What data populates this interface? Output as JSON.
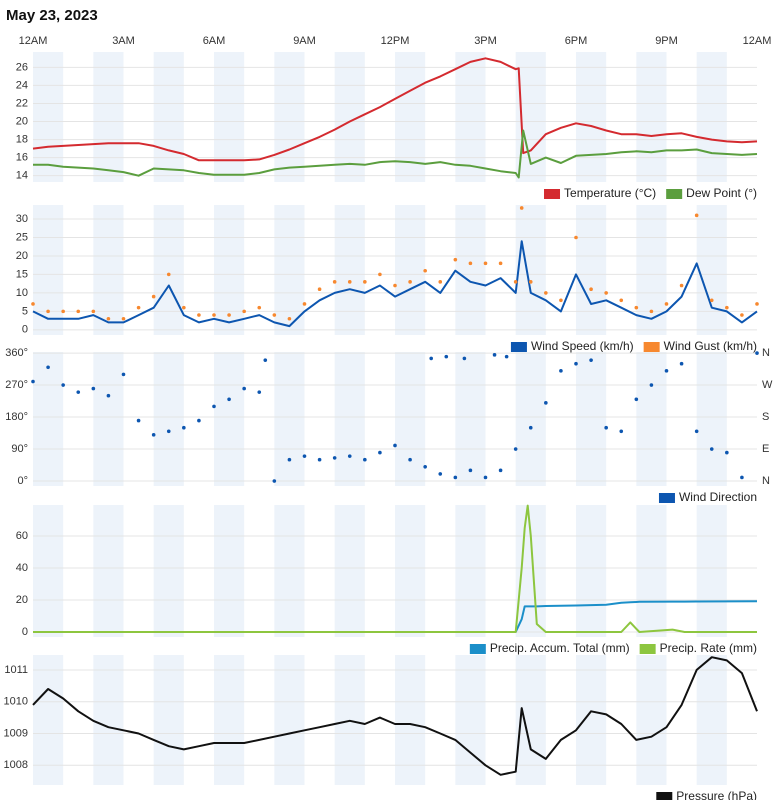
{
  "title": "May 23, 2023",
  "chart_data": [
    {
      "type": "line",
      "xlim": [
        0,
        24
      ],
      "xticks": [
        {
          "value": 0,
          "label": "12AM"
        },
        {
          "value": 3,
          "label": "3AM"
        },
        {
          "value": 6,
          "label": "6AM"
        },
        {
          "value": 9,
          "label": "9AM"
        },
        {
          "value": 12,
          "label": "12PM"
        },
        {
          "value": 15,
          "label": "3PM"
        },
        {
          "value": 18,
          "label": "6PM"
        },
        {
          "value": 21,
          "label": "9PM"
        },
        {
          "value": 24,
          "label": "12AM"
        }
      ],
      "ylim": [
        13.3,
        27.7
      ],
      "yticks": [
        14,
        16,
        18,
        20,
        22,
        24,
        26
      ],
      "grid": true,
      "x": [
        0,
        0.5,
        1,
        1.5,
        2,
        2.5,
        3,
        3.5,
        4,
        4.5,
        5,
        5.5,
        6,
        6.5,
        7,
        7.5,
        8,
        8.5,
        9,
        9.5,
        10,
        10.5,
        11,
        11.5,
        12,
        12.5,
        13,
        13.5,
        14,
        14.5,
        15,
        15.5,
        16,
        16.1,
        16.25,
        16.5,
        17,
        17.5,
        18,
        18.5,
        19,
        19.5,
        20,
        20.5,
        21,
        21.5,
        22,
        22.5,
        23,
        23.5,
        24
      ],
      "series": [
        {
          "name": "Temperature (°C)",
          "color": "#d42a2f",
          "type": "line",
          "values": [
            17.0,
            17.2,
            17.3,
            17.4,
            17.5,
            17.6,
            17.6,
            17.6,
            17.3,
            16.8,
            16.4,
            15.7,
            15.7,
            15.7,
            15.7,
            15.8,
            16.3,
            16.9,
            17.6,
            18.3,
            19.1,
            20.0,
            20.8,
            21.6,
            22.5,
            23.4,
            24.3,
            25.0,
            25.8,
            26.6,
            27.0,
            26.6,
            25.8,
            25.9,
            16.5,
            16.8,
            18.6,
            19.3,
            19.8,
            19.5,
            19.0,
            18.6,
            18.6,
            18.4,
            18.6,
            18.7,
            18.3,
            18.0,
            17.8,
            17.7,
            17.8
          ]
        },
        {
          "name": "Dew Point (°)",
          "color": "#5b9e3e",
          "type": "line",
          "values": [
            15.2,
            15.2,
            15.0,
            14.9,
            14.8,
            14.6,
            14.4,
            14.0,
            14.8,
            14.7,
            14.6,
            14.3,
            14.1,
            14.1,
            14.1,
            14.3,
            14.7,
            14.9,
            15.0,
            15.1,
            15.2,
            15.3,
            15.2,
            15.5,
            15.6,
            15.5,
            15.3,
            15.5,
            15.2,
            15.1,
            14.8,
            14.5,
            14.3,
            13.8,
            19.0,
            15.3,
            16.0,
            15.4,
            16.2,
            16.3,
            16.4,
            16.6,
            16.7,
            16.6,
            16.8,
            16.8,
            16.9,
            16.5,
            16.4,
            16.3,
            16.4
          ]
        }
      ]
    },
    {
      "type": "line",
      "xlim": [
        0,
        24
      ],
      "ylim": [
        -1.4,
        33.8
      ],
      "yticks": [
        0,
        5,
        10,
        15,
        20,
        25,
        30
      ],
      "grid": true,
      "x": [
        0,
        0.5,
        1,
        1.5,
        2,
        2.5,
        3,
        3.5,
        4,
        4.5,
        5,
        5.5,
        6,
        6.5,
        7,
        7.5,
        8,
        8.5,
        9,
        9.5,
        10,
        10.5,
        11,
        11.5,
        12,
        12.5,
        13,
        13.5,
        14,
        14.5,
        15,
        15.5,
        16,
        16.2,
        16.5,
        17,
        17.5,
        18,
        18.5,
        19,
        19.5,
        20,
        20.5,
        21,
        21.5,
        22,
        22.5,
        23,
        23.5,
        24
      ],
      "series": [
        {
          "name": "Wind Speed (km/h)",
          "color": "#0d56b0",
          "type": "line",
          "values": [
            5,
            3,
            3,
            3,
            4,
            2,
            2,
            4,
            6,
            12,
            4,
            2,
            3,
            2,
            3,
            4,
            2,
            1,
            5,
            8,
            10,
            11,
            10,
            12,
            9,
            11,
            13,
            10,
            16,
            13,
            12,
            14,
            10,
            24,
            10,
            8,
            5,
            15,
            7,
            8,
            6,
            4,
            3,
            5,
            9,
            18,
            6,
            5,
            2,
            5
          ]
        },
        {
          "name": "Wind Gust (km/h)",
          "color": "#f7882f",
          "type": "scatter",
          "values": [
            7,
            5,
            5,
            5,
            5,
            3,
            3,
            6,
            9,
            15,
            6,
            4,
            4,
            4,
            5,
            6,
            4,
            3,
            7,
            11,
            13,
            13,
            13,
            15,
            12,
            13,
            16,
            13,
            19,
            18,
            18,
            18,
            13,
            33,
            13,
            10,
            8,
            25,
            11,
            10,
            8,
            6,
            5,
            7,
            12,
            31,
            8,
            6,
            4,
            7
          ]
        }
      ]
    },
    {
      "type": "scatter",
      "xlim": [
        0,
        24
      ],
      "ylim": [
        -14,
        363
      ],
      "yticks": [
        {
          "value": 0,
          "label": "0°"
        },
        {
          "value": 90,
          "label": "90°"
        },
        {
          "value": 180,
          "label": "180°"
        },
        {
          "value": 270,
          "label": "270°"
        },
        {
          "value": 360,
          "label": "360°"
        }
      ],
      "y2lim": [
        -14,
        363
      ],
      "y2ticks": [
        {
          "value": 0,
          "label": "N"
        },
        {
          "value": 90,
          "label": "E"
        },
        {
          "value": 180,
          "label": "S"
        },
        {
          "value": 270,
          "label": "W"
        },
        {
          "value": 360,
          "label": "N"
        }
      ],
      "grid": true,
      "x": [
        0,
        0.5,
        1,
        1.5,
        2,
        2.5,
        3,
        3.5,
        4,
        4.5,
        5,
        5.5,
        6,
        6.5,
        7,
        7.5,
        7.7,
        8,
        8.5,
        9,
        9.5,
        10,
        10.5,
        11,
        11.5,
        12,
        12.5,
        13,
        13.2,
        13.5,
        13.7,
        14,
        14.3,
        14.5,
        15,
        15.3,
        15.5,
        15.7,
        16,
        16.5,
        17,
        17.5,
        18,
        18.5,
        19,
        19.5,
        20,
        20.5,
        21,
        21.5,
        22,
        22.5,
        23,
        23.5,
        24
      ],
      "series": [
        {
          "name": "Wind Direction",
          "color": "#0d56b0",
          "type": "scatter",
          "values": [
            280,
            320,
            270,
            250,
            260,
            240,
            300,
            170,
            130,
            140,
            150,
            170,
            210,
            230,
            260,
            250,
            340,
            0,
            60,
            70,
            60,
            65,
            70,
            60,
            80,
            100,
            60,
            40,
            345,
            20,
            350,
            10,
            345,
            30,
            10,
            355,
            30,
            350,
            90,
            150,
            220,
            310,
            330,
            340,
            150,
            140,
            230,
            270,
            310,
            330,
            140,
            90,
            80,
            10,
            360
          ]
        }
      ]
    },
    {
      "type": "line",
      "xlim": [
        0,
        24
      ],
      "ylim": [
        -3.1,
        79.4
      ],
      "yticks": [
        0,
        20,
        40,
        60
      ],
      "grid": true,
      "x": [
        0,
        16,
        16.2,
        16.3,
        16.4,
        16.5,
        16.7,
        17,
        18,
        19,
        19.5,
        19.8,
        20,
        20.1,
        21.2,
        21.6,
        22,
        24
      ],
      "series": [
        {
          "name": "Precip. Accum. Total (mm)",
          "color": "#1b8fc9",
          "type": "line",
          "values": [
            0,
            0,
            8,
            16,
            16,
            16,
            16,
            16.3,
            16.6,
            17,
            18.3,
            18.6,
            18.8,
            18.9,
            19,
            19,
            19.1,
            19.2
          ]
        },
        {
          "name": "Precip. Rate (mm)",
          "color": "#8dc63f",
          "type": "line",
          "values": [
            0,
            0,
            40,
            65,
            79,
            60,
            5,
            0,
            0,
            0,
            0,
            6,
            2,
            0,
            1.5,
            0,
            0,
            0
          ]
        }
      ]
    },
    {
      "type": "line",
      "xlim": [
        0,
        24
      ],
      "ylim": [
        1007.38,
        1011.47
      ],
      "yticks": [
        1008,
        1009,
        1010,
        1011
      ],
      "grid": true,
      "x": [
        0,
        0.5,
        1,
        1.5,
        2,
        2.5,
        3,
        3.5,
        4,
        4.5,
        5,
        5.5,
        6,
        6.5,
        7,
        7.5,
        8,
        8.5,
        9,
        9.5,
        10,
        10.5,
        11,
        11.5,
        12,
        12.5,
        13,
        13.5,
        14,
        14.5,
        15,
        15.5,
        16,
        16.2,
        16.5,
        17,
        17.5,
        18,
        18.5,
        19,
        19.5,
        20,
        20.5,
        21,
        21.5,
        22,
        22.5,
        23,
        23.5,
        24
      ],
      "series": [
        {
          "name": "Pressure (hPa)",
          "color": "#111111",
          "type": "line",
          "values": [
            1009.9,
            1010.4,
            1010.1,
            1009.7,
            1009.4,
            1009.2,
            1009.1,
            1009.0,
            1008.8,
            1008.6,
            1008.5,
            1008.6,
            1008.7,
            1008.7,
            1008.7,
            1008.8,
            1008.9,
            1009.0,
            1009.1,
            1009.2,
            1009.3,
            1009.4,
            1009.3,
            1009.5,
            1009.3,
            1009.3,
            1009.2,
            1009.0,
            1008.8,
            1008.4,
            1008.0,
            1007.7,
            1007.8,
            1009.8,
            1008.5,
            1008.2,
            1008.8,
            1009.1,
            1009.7,
            1009.6,
            1009.3,
            1008.8,
            1008.9,
            1009.2,
            1009.9,
            1011.0,
            1011.4,
            1011.3,
            1010.9,
            1009.7
          ]
        }
      ]
    }
  ]
}
